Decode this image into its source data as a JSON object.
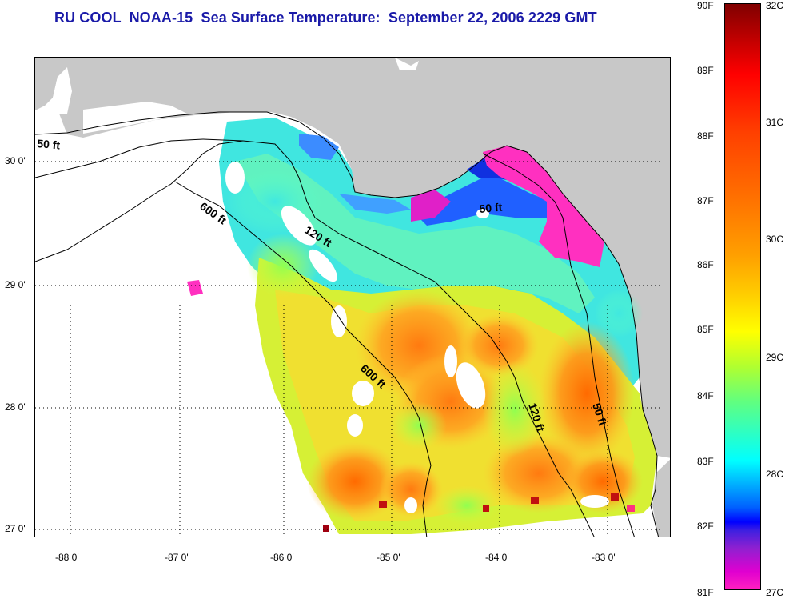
{
  "title": "RU COOL  NOAA-15  Sea Surface Temperature:  September 22, 2006 2229 GMT",
  "latitude_labels": [
    {
      "text": "30 0'"
    },
    {
      "text": "29 0'"
    },
    {
      "text": "28 0'"
    },
    {
      "text": "27 0'"
    }
  ],
  "longitude_labels": [
    {
      "text": "-88 0'"
    },
    {
      "text": "-87 0'"
    },
    {
      "text": "-86 0'"
    },
    {
      "text": "-85 0'"
    },
    {
      "text": "-84 0'"
    },
    {
      "text": "-83 0'"
    }
  ],
  "contour_labels": [
    {
      "text": "50 ft"
    },
    {
      "text": "600 ft"
    },
    {
      "text": "120 ft"
    },
    {
      "text": "50 ft"
    },
    {
      "text": "600 ft"
    },
    {
      "text": "120 ft"
    },
    {
      "text": "50 ft"
    }
  ],
  "colorbar": {
    "fahrenheit": [
      "90F",
      "89F",
      "88F",
      "87F",
      "86F",
      "85F",
      "84F",
      "83F",
      "82F",
      "81F"
    ],
    "celsius": [
      "32C",
      "31C",
      "30C",
      "29C",
      "28C",
      "27C"
    ]
  },
  "colors": {
    "title": "#1a1aa8",
    "land": "#c8c8c8",
    "no_data": "#ffffff",
    "coast": "#000000"
  }
}
